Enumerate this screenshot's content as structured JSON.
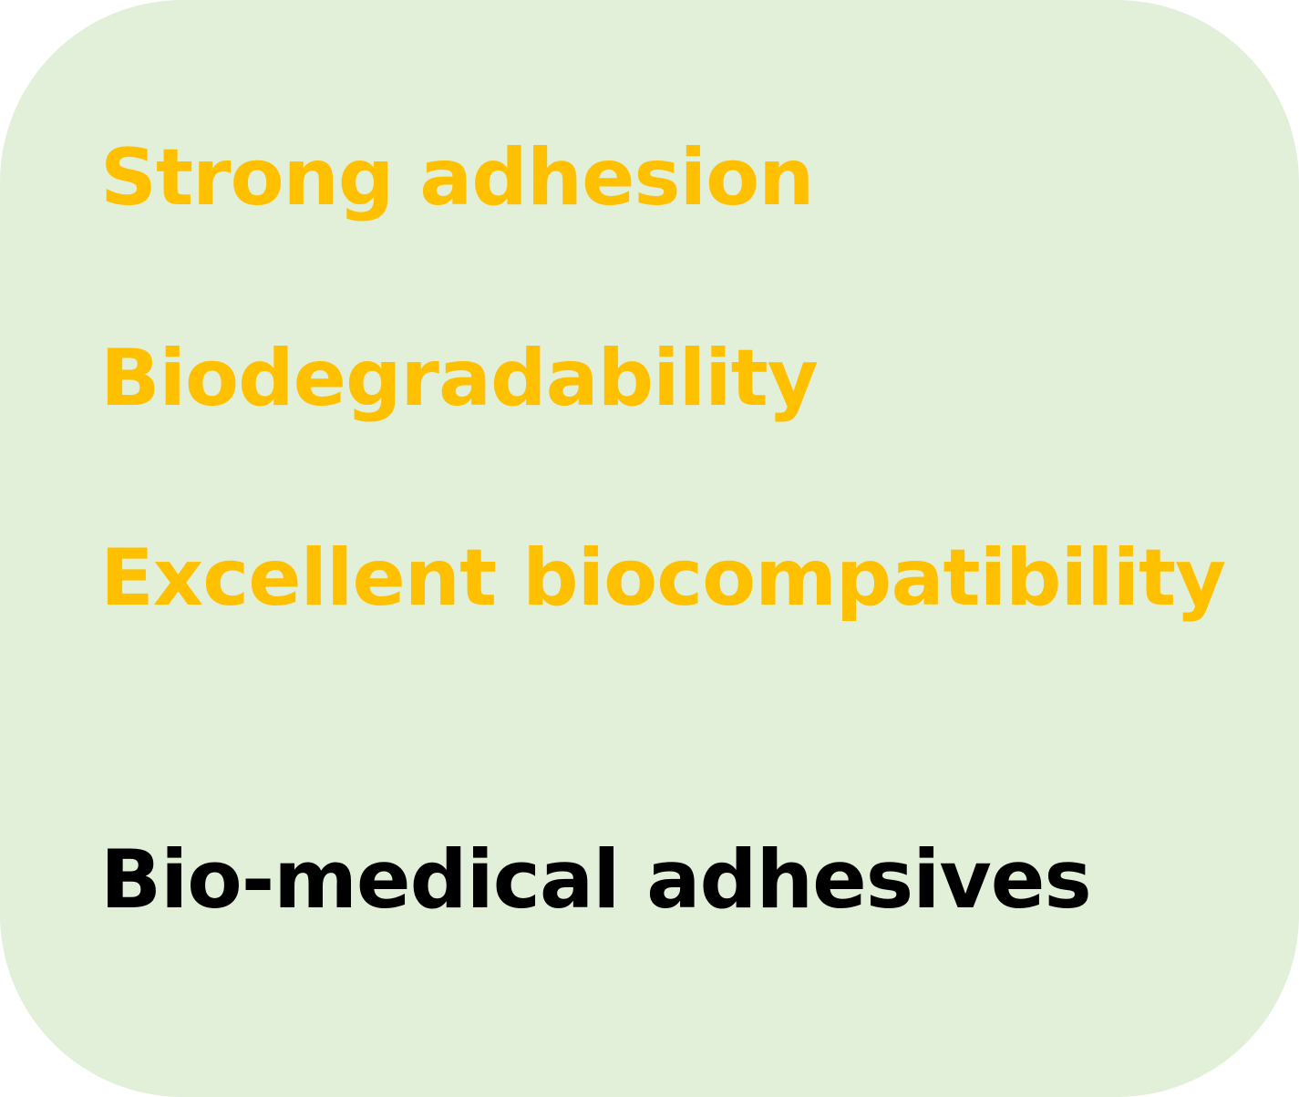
{
  "properties": [
    "Strong adhesion",
    "Biodegradability",
    "Excellent biocompatibility"
  ],
  "conclusion": "Bio-medical adhesives",
  "colors": {
    "background": "#e2efd9",
    "property_text": "#ffc000",
    "conclusion_text": "#000000"
  }
}
